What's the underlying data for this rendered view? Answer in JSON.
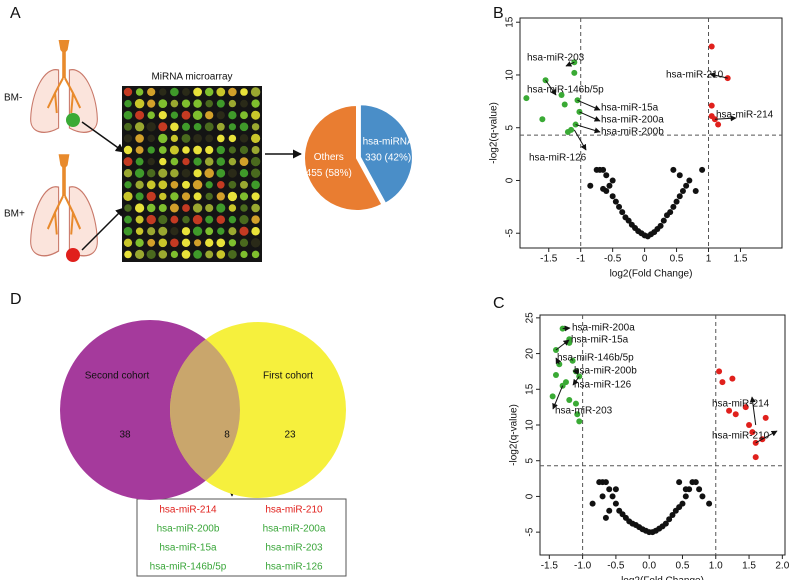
{
  "panels": [
    "A",
    "B",
    "C",
    "D"
  ],
  "figure_a": {
    "groups": [
      "BM-",
      "BM+"
    ],
    "array_title": "MiRNA microarray"
  },
  "chart_data": [
    {
      "type": "pie",
      "categories": [
        "hsa-miRNA",
        "Others"
      ],
      "values": [
        330,
        455
      ],
      "value_labels": [
        "330 (42%)",
        "455 (58%)"
      ],
      "colors": [
        "#4a8ec8",
        "#e97d31"
      ]
    },
    {
      "type": "scatter",
      "xlabel": "log2(Fold Change)",
      "ylabel": "-log2(q-value)",
      "xlim": [
        -1.95,
        2.15
      ],
      "ylim": [
        -6.4,
        15.4
      ],
      "xticks": [
        -1.5,
        -1,
        -0.5,
        0,
        0.5,
        1,
        1.5
      ],
      "yticks": [
        -5,
        0,
        5,
        10,
        15
      ],
      "vlines": [
        -1,
        1
      ],
      "hline": 4.3,
      "series": [
        {
          "color": "#111111",
          "x": [
            -0.85,
            -0.75,
            -0.7,
            -0.65,
            -0.6,
            -0.55,
            -0.5,
            -0.45,
            -0.4,
            -0.35,
            -0.3,
            -0.25,
            -0.2,
            -0.15,
            -0.1,
            -0.05,
            0,
            0.05,
            0.1,
            0.15,
            0.2,
            0.25,
            0.3,
            0.35,
            0.4,
            0.45,
            0.5,
            0.55,
            0.6,
            0.65,
            0.7,
            0.8,
            0.9,
            -0.6,
            -0.5,
            -0.65,
            0.45,
            0.55
          ],
          "y": [
            -0.5,
            1,
            1,
            1,
            0.5,
            -0.5,
            -1.5,
            -2,
            -2.5,
            -3,
            -3.5,
            -3.8,
            -4.2,
            -4.5,
            -4.8,
            -5,
            -5.2,
            -5.3,
            -5.1,
            -4.9,
            -4.6,
            -4.3,
            -3.8,
            -3.3,
            -3,
            -2.5,
            -2,
            -1.5,
            -1,
            -0.5,
            0,
            -1,
            1,
            -1,
            0,
            -0.8,
            1,
            0.5
          ]
        },
        {
          "color": "#3aaa35",
          "x": [
            -1.85,
            -1.6,
            -1.55,
            -1.3,
            -1.25,
            -1.1,
            -1.05,
            -1.02,
            -1.15,
            -1.08,
            -1.2,
            -1.1
          ],
          "y": [
            7.8,
            5.8,
            9.5,
            8.1,
            7.2,
            11.2,
            7.6,
            6.5,
            4.8,
            5.3,
            4.6,
            10.2
          ]
        },
        {
          "color": "#e0201c",
          "x": [
            1.05,
            1.3,
            1.05,
            1.1,
            1.15,
            1.05
          ],
          "y": [
            12.7,
            9.7,
            7.1,
            5.8,
            5.3,
            6.1
          ]
        }
      ],
      "annotations": [
        {
          "text": "hsa-miR-203",
          "x": -1.1,
          "y": 11.2
        },
        {
          "text": "hsa-miR-146b/5p",
          "x": -1.55,
          "y": 9.5
        },
        {
          "text": "hsa-miR-15a",
          "x": -1.05,
          "y": 7.6
        },
        {
          "text": "hsa-miR-200a",
          "x": -1.02,
          "y": 6.5
        },
        {
          "text": "hsa-miR-200b",
          "x": -1.08,
          "y": 5.3
        },
        {
          "text": "hsa-miR-126",
          "x": -1.1,
          "y": 4.8
        },
        {
          "text": "hsa-miR-210",
          "x": 1.3,
          "y": 9.7
        },
        {
          "text": "hsa-miR-214",
          "x": 1.1,
          "y": 5.8
        }
      ]
    },
    {
      "type": "scatter",
      "xlabel": "log2(Fold Change)",
      "ylabel": "-log2(q-value)",
      "xlim": [
        -1.64,
        2.04
      ],
      "ylim": [
        -8.2,
        25.4
      ],
      "xticks": [
        -1.5,
        {
          "value": -1,
          "label": "-1.0"
        },
        -0.5,
        {
          "value": 0,
          "label": "0.0"
        },
        0.5,
        {
          "value": 1,
          "label": "1.0"
        },
        1.5,
        {
          "value": 2,
          "label": "2.0"
        }
      ],
      "yticks": [
        -5,
        0,
        5,
        10,
        15,
        20,
        25
      ],
      "vlines": [
        -1,
        1
      ],
      "hline": 4.3,
      "series": [
        {
          "color": "#111111",
          "x": [
            -0.85,
            -0.75,
            -0.7,
            -0.65,
            -0.6,
            -0.55,
            -0.5,
            -0.45,
            -0.4,
            -0.35,
            -0.3,
            -0.25,
            -0.2,
            -0.15,
            -0.1,
            -0.05,
            0,
            0.05,
            0.1,
            0.15,
            0.2,
            0.25,
            0.3,
            0.35,
            0.4,
            0.45,
            0.5,
            0.55,
            0.6,
            0.65,
            0.7,
            0.8,
            0.9,
            -0.6,
            -0.5,
            -0.65,
            0.45,
            0.55,
            -0.7,
            0.75
          ],
          "y": [
            -1,
            2,
            2,
            2,
            1,
            0,
            -1,
            -2,
            -2.5,
            -3,
            -3.5,
            -3.8,
            -4,
            -4.3,
            -4.6,
            -4.8,
            -5,
            -5,
            -4.8,
            -4.5,
            -4.2,
            -3.8,
            -3.2,
            -2.6,
            -2,
            -1.5,
            -1,
            0,
            1,
            2,
            2,
            0,
            -1,
            -2,
            1,
            -3,
            2,
            1,
            0,
            1
          ]
        },
        {
          "color": "#3aaa35",
          "x": [
            -1.3,
            -1.2,
            -1.4,
            -1.35,
            -1.1,
            -1.05,
            -1.25,
            -1.45,
            -1.2,
            -1.1,
            -1.3,
            -1.05,
            -1.4,
            -1.15,
            -1.08,
            -1.2
          ],
          "y": [
            23.5,
            21.5,
            20.5,
            18.5,
            17.5,
            16.8,
            16,
            14,
            13.5,
            13,
            15.5,
            10.5,
            17,
            19,
            11.5,
            22
          ]
        },
        {
          "color": "#e0201c",
          "x": [
            1.05,
            1.1,
            1.25,
            1.2,
            1.3,
            1.5,
            1.55,
            1.6,
            1.7,
            1.75,
            1.6,
            1.45
          ],
          "y": [
            17.5,
            16,
            16.5,
            12,
            11.5,
            10,
            9,
            7.5,
            8,
            11,
            5.5,
            12.5
          ]
        }
      ],
      "annotations": [
        {
          "text": "hsa-miR-200a",
          "x": -1.3,
          "y": 23.5
        },
        {
          "text": "hsa-miR-15a",
          "x": -1.4,
          "y": 20.5
        },
        {
          "text": "hsa-miR-146b/5p",
          "x": -1.35,
          "y": 18.5
        },
        {
          "text": "hsa-miR-200b",
          "x": -1.1,
          "y": 17.5
        },
        {
          "text": "hsa-miR-126",
          "x": -1.05,
          "y": 16.8
        },
        {
          "text": "hsa-miR-203",
          "x": -1.3,
          "y": 15.5
        },
        {
          "text": "hsa-miR-214",
          "x": 1.6,
          "y": 10
        },
        {
          "text": "hsa-miR-210",
          "x": 1.6,
          "y": 7.5
        }
      ]
    },
    {
      "type": "venn",
      "sets": [
        {
          "name": "Second cohort",
          "count": 38,
          "color": "#a53a9c"
        },
        {
          "name": "First cohort",
          "count": 23,
          "color": "#f6f03d"
        }
      ],
      "overlap": 8,
      "overlap_color": "#c9a66c",
      "list": [
        [
          "hsa-miR-214",
          "hsa-miR-210"
        ],
        [
          "hsa-miR-200b",
          "hsa-miR-200a"
        ],
        [
          "hsa-miR-15a",
          "hsa-miR-203"
        ],
        [
          "hsa-miR-146b/5p",
          "hsa-miR-126"
        ]
      ],
      "row_colors": [
        "#e0201c",
        "#3aa63a",
        "#3aa63a",
        "#3aa63a"
      ]
    }
  ]
}
